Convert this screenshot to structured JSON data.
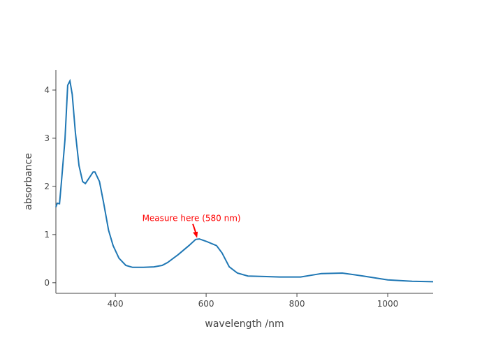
{
  "chart_data": {
    "type": "line",
    "title": "",
    "xlabel": "wavelength /nm",
    "ylabel": "absorbance",
    "xlim": [
      269,
      1100
    ],
    "ylim": [
      -0.22,
      4.42
    ],
    "xticks": [
      400,
      600,
      800,
      1000
    ],
    "yticks": [
      0,
      1,
      2,
      3,
      4
    ],
    "grid": false,
    "line_color": "#1f77b4",
    "series": [
      {
        "name": "absorbance",
        "x": [
          269,
          272,
          277,
          281,
          289,
          295,
          300,
          305,
          312,
          320,
          328,
          334,
          342,
          351,
          355,
          365,
          374,
          385,
          395,
          408,
          423,
          438,
          462,
          485,
          503,
          515,
          538,
          562,
          577,
          585,
          600,
          623,
          635,
          651,
          669,
          692,
          762,
          808,
          854,
          900,
          946,
          1000,
          1054,
          1100
        ],
        "y": [
          1.57,
          1.65,
          1.64,
          2.07,
          2.97,
          4.1,
          4.19,
          3.91,
          3.12,
          2.43,
          2.1,
          2.06,
          2.17,
          2.3,
          2.3,
          2.1,
          1.67,
          1.09,
          0.77,
          0.51,
          0.36,
          0.32,
          0.32,
          0.33,
          0.36,
          0.42,
          0.58,
          0.77,
          0.9,
          0.91,
          0.86,
          0.77,
          0.62,
          0.33,
          0.2,
          0.14,
          0.12,
          0.12,
          0.19,
          0.2,
          0.14,
          0.06,
          0.03,
          0.02
        ]
      }
    ],
    "annotations": [
      {
        "text": "Measure here (580 nm)",
        "x": 580,
        "y": 0.93,
        "color": "#ff0000"
      }
    ]
  }
}
